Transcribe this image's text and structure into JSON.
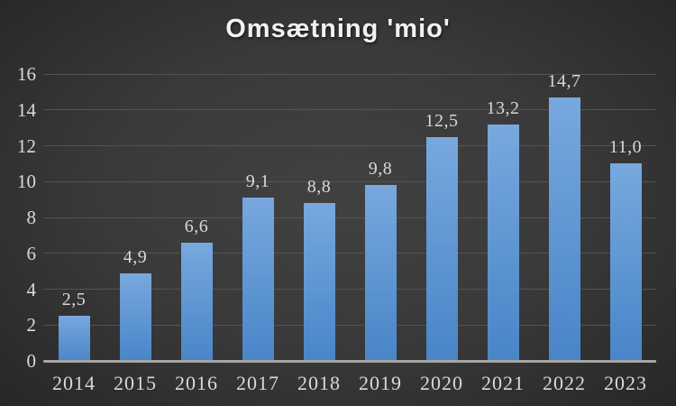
{
  "chart_data": {
    "type": "bar",
    "title": "Omsætning 'mio'",
    "categories": [
      "2014",
      "2015",
      "2016",
      "2017",
      "2018",
      "2019",
      "2020",
      "2021",
      "2022",
      "2023"
    ],
    "values": [
      2.5,
      4.9,
      6.6,
      9.1,
      8.8,
      9.8,
      12.5,
      13.2,
      14.7,
      11.0
    ],
    "value_labels": [
      "2,5",
      "4,9",
      "6,6",
      "9,1",
      "8,8",
      "9,8",
      "12,5",
      "13,2",
      "14,7",
      "11,0"
    ],
    "xlabel": "",
    "ylabel": "",
    "ylim": [
      0,
      16
    ],
    "yticks": [
      0,
      2,
      4,
      6,
      8,
      10,
      12,
      14,
      16
    ],
    "grid": true,
    "legend": "none",
    "decimal_separator": ",",
    "colors": {
      "background_center": "#414141",
      "background_edge": "#242424",
      "bar_top": "#78a8de",
      "bar_bottom": "#4885c8",
      "gridline": "#585858",
      "axis_line": "#a6a6a6",
      "tick_label": "#d9d9d9",
      "data_label": "#d9d9d9",
      "title": "#f2f2f2"
    }
  }
}
